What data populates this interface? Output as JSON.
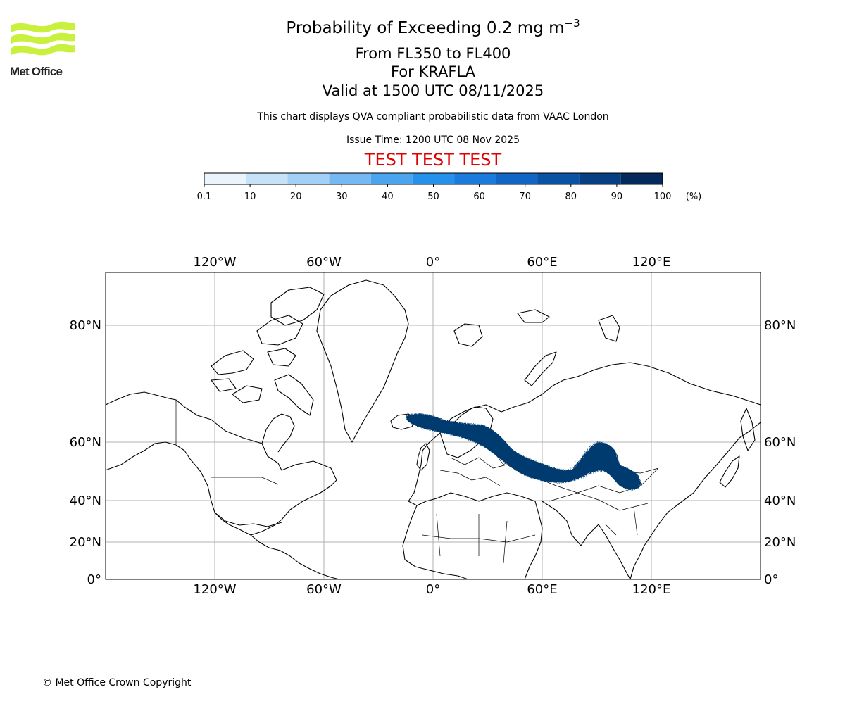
{
  "logo": {
    "text": "Met Office",
    "color": "#c8f03c"
  },
  "header": {
    "title": "Probability of Exceeding 0.2 mg m",
    "title_exponent": "−3",
    "level_range": "From FL350 to FL400",
    "volcano": "For KRAFLA",
    "valid": "Valid at 1500 UTC 08/11/2025",
    "description": "This chart displays QVA compliant probabilistic data from VAAC London",
    "issue_time": "Issue Time: 1200 UTC 08 Nov 2025",
    "test_banner": "TEST TEST TEST"
  },
  "colorbar": {
    "ticks": [
      "0.1",
      "10",
      "20",
      "30",
      "40",
      "50",
      "60",
      "70",
      "80",
      "90",
      "100"
    ],
    "unit": "(%)",
    "colors": [
      "#eaf4fd",
      "#c6e2f9",
      "#a2d0f6",
      "#76b9f2",
      "#4aa4ee",
      "#2691eb",
      "#1a7bdc",
      "#1066c2",
      "#0a52a3",
      "#063f82",
      "#042a5c"
    ]
  },
  "map": {
    "lon_labels": [
      "120°W",
      "60°W",
      "0°",
      "60°E",
      "120°E"
    ],
    "lat_labels": [
      "80°N",
      "60°N",
      "40°N",
      "20°N",
      "0°"
    ],
    "plume_color": "#003a70"
  },
  "footer": {
    "copyright": "© Met Office Crown Copyright"
  }
}
